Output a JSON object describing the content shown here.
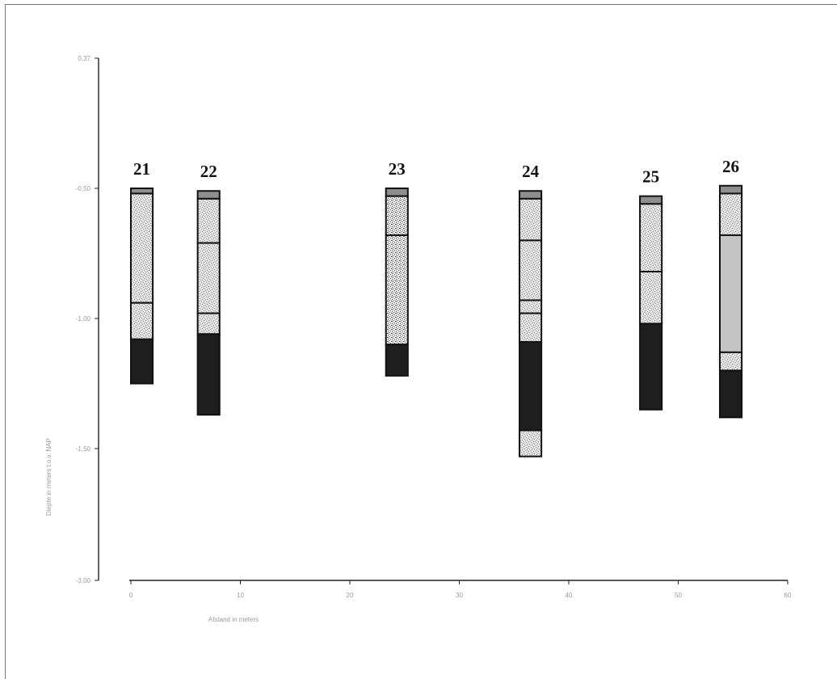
{
  "chart_data": {
    "type": "bar",
    "title": "",
    "xlabel": "Afstand in meters",
    "ylabel": "Diepte in meters t.o.v. NAP",
    "xlim": [
      0,
      60
    ],
    "ylim": [
      -3.0,
      0.37
    ],
    "x_ticks": [
      {
        "value": 0,
        "label": "0"
      },
      {
        "value": 10,
        "label": "10"
      },
      {
        "value": 20,
        "label": "20"
      },
      {
        "value": 30,
        "label": "30"
      },
      {
        "value": 40,
        "label": "40"
      },
      {
        "value": 50,
        "label": "50"
      },
      {
        "value": 60,
        "label": "60"
      }
    ],
    "y_ticks": [
      {
        "value": 0.37,
        "label": "0,37"
      },
      {
        "value": -0.5,
        "label": "-0,50"
      },
      {
        "value": -1.0,
        "label": "-1,00"
      },
      {
        "value": -1.5,
        "label": "-1,50"
      },
      {
        "value": -3.0,
        "label": "-3,00"
      }
    ],
    "grid": false,
    "colors": {
      "dark": "#1e1e1e",
      "gray": "#c4c4c4",
      "speckled_light": "#e6e6e6",
      "speckled_dark": "#a8a8a8",
      "topsoil": "#8e8e8e"
    },
    "cores": [
      {
        "label": "21",
        "x_from": 0,
        "x_to": 2,
        "layers": [
          {
            "top": -0.5,
            "bottom": -0.52,
            "fill": "topsoil"
          },
          {
            "top": -0.52,
            "bottom": -0.94,
            "fill": "speckled_light"
          },
          {
            "top": -0.94,
            "bottom": -1.08,
            "fill": "speckled_light"
          },
          {
            "top": -1.08,
            "bottom": -1.25,
            "fill": "dark"
          }
        ]
      },
      {
        "label": "22",
        "x_from": 6.1,
        "x_to": 8.1,
        "layers": [
          {
            "top": -0.51,
            "bottom": -0.54,
            "fill": "topsoil"
          },
          {
            "top": -0.54,
            "bottom": -0.71,
            "fill": "speckled_light"
          },
          {
            "top": -0.71,
            "bottom": -0.98,
            "fill": "speckled_light"
          },
          {
            "top": -0.98,
            "bottom": -1.06,
            "fill": "speckled_light"
          },
          {
            "top": -1.06,
            "bottom": -1.37,
            "fill": "dark"
          }
        ]
      },
      {
        "label": "23",
        "x_from": 23.3,
        "x_to": 25.3,
        "layers": [
          {
            "top": -0.5,
            "bottom": -0.53,
            "fill": "topsoil"
          },
          {
            "top": -0.53,
            "bottom": -0.68,
            "fill": "speckled_dark"
          },
          {
            "top": -0.68,
            "bottom": -1.1,
            "fill": "speckled_dark"
          },
          {
            "top": -1.1,
            "bottom": -1.22,
            "fill": "dark"
          }
        ]
      },
      {
        "label": "24",
        "x_from": 35.5,
        "x_to": 37.5,
        "layers": [
          {
            "top": -0.51,
            "bottom": -0.54,
            "fill": "topsoil"
          },
          {
            "top": -0.54,
            "bottom": -0.7,
            "fill": "speckled_light"
          },
          {
            "top": -0.7,
            "bottom": -0.93,
            "fill": "speckled_light"
          },
          {
            "top": -0.93,
            "bottom": -0.98,
            "fill": "speckled_light"
          },
          {
            "top": -0.98,
            "bottom": -1.09,
            "fill": "speckled_light"
          },
          {
            "top": -1.09,
            "bottom": -1.43,
            "fill": "dark"
          },
          {
            "top": -1.43,
            "bottom": -1.53,
            "fill": "speckled_light"
          }
        ]
      },
      {
        "label": "25",
        "x_from": 46.5,
        "x_to": 48.5,
        "layers": [
          {
            "top": -0.53,
            "bottom": -0.56,
            "fill": "topsoil"
          },
          {
            "top": -0.56,
            "bottom": -0.82,
            "fill": "speckled_light"
          },
          {
            "top": -0.82,
            "bottom": -1.02,
            "fill": "speckled_light"
          },
          {
            "top": -1.02,
            "bottom": -1.35,
            "fill": "dark"
          }
        ]
      },
      {
        "label": "26",
        "x_from": 53.8,
        "x_to": 55.8,
        "layers": [
          {
            "top": -0.49,
            "bottom": -0.52,
            "fill": "topsoil"
          },
          {
            "top": -0.52,
            "bottom": -0.68,
            "fill": "speckled_light"
          },
          {
            "top": -0.68,
            "bottom": -1.13,
            "fill": "gray"
          },
          {
            "top": -1.13,
            "bottom": -1.2,
            "fill": "speckled_light"
          },
          {
            "top": -1.2,
            "bottom": -1.38,
            "fill": "dark"
          }
        ]
      }
    ]
  }
}
